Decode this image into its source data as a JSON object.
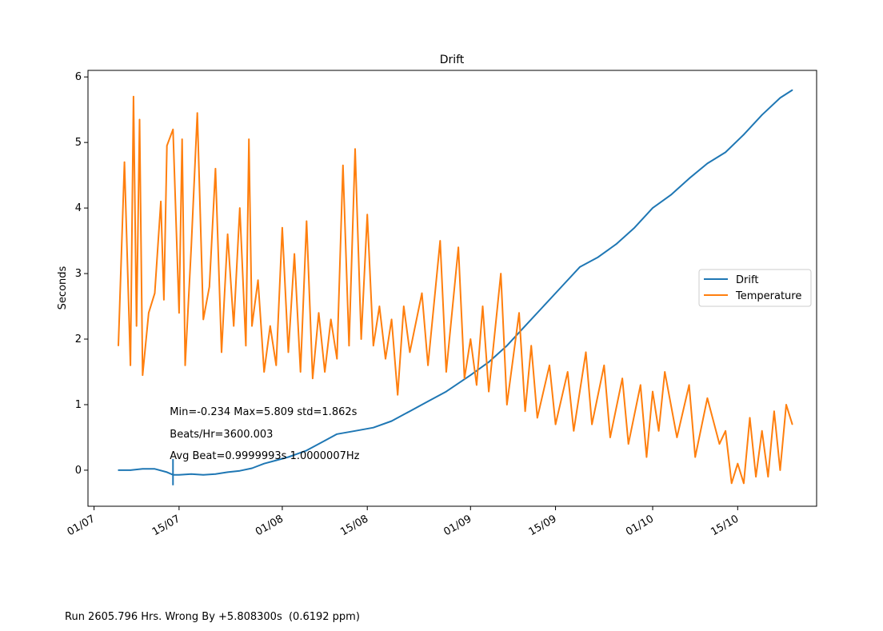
{
  "footer": {
    "run_text": "Run 2605.796 Hrs. Wrong By +5.808300s  (0.6192 ppm)"
  },
  "chart_data": {
    "type": "line",
    "title": "Drift",
    "xlabel": "",
    "ylabel": "Seconds",
    "x_axis": {
      "ticks": [
        {
          "date": "2021-07-01",
          "label": "01/07"
        },
        {
          "date": "2021-07-15",
          "label": "15/07"
        },
        {
          "date": "2021-08-01",
          "label": "01/08"
        },
        {
          "date": "2021-08-15",
          "label": "15/08"
        },
        {
          "date": "2021-09-01",
          "label": "01/09"
        },
        {
          "date": "2021-09-15",
          "label": "15/09"
        },
        {
          "date": "2021-10-01",
          "label": "01/10"
        },
        {
          "date": "2021-10-15",
          "label": "15/10"
        }
      ],
      "xlim": [
        "2021-06-30",
        "2021-10-28"
      ]
    },
    "y_axis": {
      "ticks": [
        0,
        1,
        2,
        3,
        4,
        5,
        6
      ],
      "ylim": [
        -0.55,
        6.1
      ]
    },
    "grid": false,
    "legend_position": "center-right",
    "annotations": [
      "Min=-0.234 Max=5.809 std=1.862s",
      "Beats/Hr=3600.003",
      "Avg Beat=0.9999993s  1.0000007Hz"
    ],
    "series": [
      {
        "name": "Drift",
        "color": "#1f77b4",
        "points": [
          [
            "2021-07-05",
            0.0
          ],
          [
            "2021-07-07",
            0.0
          ],
          [
            "2021-07-09",
            0.02
          ],
          [
            "2021-07-11",
            0.02
          ],
          [
            "2021-07-13",
            -0.03
          ],
          [
            "2021-07-14",
            -0.07
          ],
          [
            "2021-07-15",
            -0.07
          ],
          [
            "2021-07-17",
            -0.06
          ],
          [
            "2021-07-19",
            -0.07
          ],
          [
            "2021-07-21",
            -0.06
          ],
          [
            "2021-07-23",
            -0.03
          ],
          [
            "2021-07-25",
            -0.01
          ],
          [
            "2021-07-27",
            0.03
          ],
          [
            "2021-07-29",
            0.1
          ],
          [
            "2021-07-31",
            0.15
          ],
          [
            "2021-08-02",
            0.2
          ],
          [
            "2021-08-05",
            0.3
          ],
          [
            "2021-08-08",
            0.45
          ],
          [
            "2021-08-10",
            0.55
          ],
          [
            "2021-08-13",
            0.6
          ],
          [
            "2021-08-16",
            0.65
          ],
          [
            "2021-08-19",
            0.75
          ],
          [
            "2021-08-22",
            0.9
          ],
          [
            "2021-08-25",
            1.05
          ],
          [
            "2021-08-28",
            1.2
          ],
          [
            "2021-09-01",
            1.45
          ],
          [
            "2021-09-04",
            1.65
          ],
          [
            "2021-09-07",
            1.9
          ],
          [
            "2021-09-10",
            2.2
          ],
          [
            "2021-09-13",
            2.5
          ],
          [
            "2021-09-16",
            2.8
          ],
          [
            "2021-09-19",
            3.1
          ],
          [
            "2021-09-22",
            3.25
          ],
          [
            "2021-09-25",
            3.45
          ],
          [
            "2021-09-28",
            3.7
          ],
          [
            "2021-10-01",
            4.0
          ],
          [
            "2021-10-04",
            4.2
          ],
          [
            "2021-10-07",
            4.45
          ],
          [
            "2021-10-10",
            4.68
          ],
          [
            "2021-10-13",
            4.85
          ],
          [
            "2021-10-16",
            5.12
          ],
          [
            "2021-10-19",
            5.42
          ],
          [
            "2021-10-22",
            5.68
          ],
          [
            "2021-10-24",
            5.8
          ]
        ]
      },
      {
        "name": "Temperature",
        "color": "#ff7f0e",
        "points": [
          [
            "2021-07-05",
            1.9
          ],
          [
            "2021-07-06",
            4.7
          ],
          [
            "2021-07-07",
            1.6
          ],
          [
            "2021-07-07T12",
            5.7
          ],
          [
            "2021-07-08",
            2.2
          ],
          [
            "2021-07-08T12",
            5.35
          ],
          [
            "2021-07-09",
            1.45
          ],
          [
            "2021-07-10",
            2.4
          ],
          [
            "2021-07-11",
            2.7
          ],
          [
            "2021-07-12",
            4.1
          ],
          [
            "2021-07-12T12",
            2.6
          ],
          [
            "2021-07-13",
            4.95
          ],
          [
            "2021-07-14",
            5.2
          ],
          [
            "2021-07-15",
            2.4
          ],
          [
            "2021-07-15T12",
            5.05
          ],
          [
            "2021-07-16",
            1.6
          ],
          [
            "2021-07-17",
            3.4
          ],
          [
            "2021-07-18",
            5.45
          ],
          [
            "2021-07-18T12",
            3.9
          ],
          [
            "2021-07-19",
            2.3
          ],
          [
            "2021-07-20",
            2.8
          ],
          [
            "2021-07-21",
            4.6
          ],
          [
            "2021-07-22",
            1.8
          ],
          [
            "2021-07-23",
            3.6
          ],
          [
            "2021-07-24",
            2.2
          ],
          [
            "2021-07-25",
            4.0
          ],
          [
            "2021-07-26",
            1.9
          ],
          [
            "2021-07-26T12",
            5.05
          ],
          [
            "2021-07-27",
            2.2
          ],
          [
            "2021-07-28",
            2.9
          ],
          [
            "2021-07-29",
            1.5
          ],
          [
            "2021-07-30",
            2.2
          ],
          [
            "2021-07-31",
            1.6
          ],
          [
            "2021-08-01",
            3.7
          ],
          [
            "2021-08-02",
            1.8
          ],
          [
            "2021-08-03",
            3.3
          ],
          [
            "2021-08-04",
            1.5
          ],
          [
            "2021-08-05",
            3.8
          ],
          [
            "2021-08-06",
            1.4
          ],
          [
            "2021-08-07",
            2.4
          ],
          [
            "2021-08-08",
            1.5
          ],
          [
            "2021-08-09",
            2.3
          ],
          [
            "2021-08-10",
            1.7
          ],
          [
            "2021-08-11",
            4.65
          ],
          [
            "2021-08-12",
            1.9
          ],
          [
            "2021-08-13",
            4.9
          ],
          [
            "2021-08-14",
            2.0
          ],
          [
            "2021-08-15",
            3.9
          ],
          [
            "2021-08-16",
            1.9
          ],
          [
            "2021-08-17",
            2.5
          ],
          [
            "2021-08-18",
            1.7
          ],
          [
            "2021-08-19",
            2.3
          ],
          [
            "2021-08-20",
            1.15
          ],
          [
            "2021-08-21",
            2.5
          ],
          [
            "2021-08-22",
            1.8
          ],
          [
            "2021-08-24",
            2.7
          ],
          [
            "2021-08-25",
            1.6
          ],
          [
            "2021-08-27",
            3.5
          ],
          [
            "2021-08-28",
            1.5
          ],
          [
            "2021-08-30",
            3.4
          ],
          [
            "2021-08-31",
            1.4
          ],
          [
            "2021-09-01",
            2.0
          ],
          [
            "2021-09-02",
            1.3
          ],
          [
            "2021-09-03",
            2.5
          ],
          [
            "2021-09-04",
            1.2
          ],
          [
            "2021-09-06",
            3.0
          ],
          [
            "2021-09-07",
            1.0
          ],
          [
            "2021-09-09",
            2.4
          ],
          [
            "2021-09-10",
            0.9
          ],
          [
            "2021-09-11",
            1.9
          ],
          [
            "2021-09-12",
            0.8
          ],
          [
            "2021-09-14",
            1.6
          ],
          [
            "2021-09-15",
            0.7
          ],
          [
            "2021-09-17",
            1.5
          ],
          [
            "2021-09-18",
            0.6
          ],
          [
            "2021-09-20",
            1.8
          ],
          [
            "2021-09-21",
            0.7
          ],
          [
            "2021-09-23",
            1.6
          ],
          [
            "2021-09-24",
            0.5
          ],
          [
            "2021-09-26",
            1.4
          ],
          [
            "2021-09-27",
            0.4
          ],
          [
            "2021-09-29",
            1.3
          ],
          [
            "2021-09-30",
            0.2
          ],
          [
            "2021-10-01",
            1.2
          ],
          [
            "2021-10-02",
            0.6
          ],
          [
            "2021-10-03",
            1.5
          ],
          [
            "2021-10-05",
            0.5
          ],
          [
            "2021-10-07",
            1.3
          ],
          [
            "2021-10-08",
            0.2
          ],
          [
            "2021-10-10",
            1.1
          ],
          [
            "2021-10-12",
            0.4
          ],
          [
            "2021-10-13",
            0.6
          ],
          [
            "2021-10-14",
            -0.2
          ],
          [
            "2021-10-15",
            0.1
          ],
          [
            "2021-10-16",
            -0.2
          ],
          [
            "2021-10-17",
            0.8
          ],
          [
            "2021-10-18",
            -0.1
          ],
          [
            "2021-10-19",
            0.6
          ],
          [
            "2021-10-20",
            -0.1
          ],
          [
            "2021-10-21",
            0.9
          ],
          [
            "2021-10-22",
            0.0
          ],
          [
            "2021-10-23",
            1.0
          ],
          [
            "2021-10-24",
            0.7
          ]
        ]
      }
    ]
  }
}
